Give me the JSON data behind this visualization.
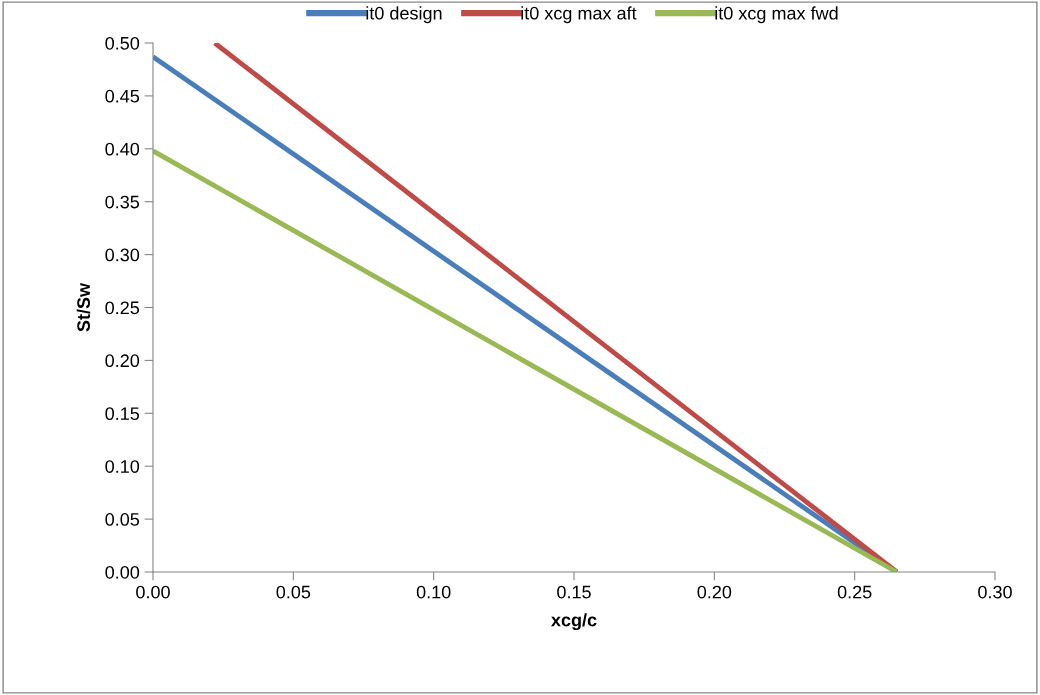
{
  "chart_data": {
    "type": "line",
    "xlabel": "xcg/c",
    "ylabel": "St/Sw",
    "xlim": [
      0,
      0.3
    ],
    "xticks": [
      {
        "value": 0,
        "label": "0.00"
      },
      {
        "value": 0.05,
        "label": "0.05"
      },
      {
        "value": 0.1,
        "label": "0.10"
      },
      {
        "value": 0.15,
        "label": "0.15"
      },
      {
        "value": 0.2,
        "label": "0.20"
      },
      {
        "value": 0.25,
        "label": "0.25"
      },
      {
        "value": 0.3,
        "label": "0.30"
      }
    ],
    "ylim": [
      0,
      0.5
    ],
    "yticks": [
      {
        "value": 0,
        "label": "0.00"
      },
      {
        "value": 0.05,
        "label": "0.05"
      },
      {
        "value": 0.1,
        "label": "0.10"
      },
      {
        "value": 0.15,
        "label": "0.15"
      },
      {
        "value": 0.2,
        "label": "0.20"
      },
      {
        "value": 0.25,
        "label": "0.25"
      },
      {
        "value": 0.3,
        "label": "0.30"
      },
      {
        "value": 0.35,
        "label": "0.35"
      },
      {
        "value": 0.4,
        "label": "0.40"
      },
      {
        "value": 0.45,
        "label": "0.45"
      },
      {
        "value": 0.5,
        "label": "0.50"
      }
    ],
    "grid": false,
    "legend": "top",
    "marker": "none",
    "line_style": "solid",
    "series": [
      {
        "name": "it0 design",
        "color": "#4a7ebb",
        "x": [
          0,
          0.265
        ],
        "values": [
          0.487,
          0
        ]
      },
      {
        "name": "it0 xcg max aft",
        "color": "#be4b48",
        "x": [
          0.022,
          0.265
        ],
        "values": [
          0.5,
          0
        ]
      },
      {
        "name": "it0 xcg max fwd",
        "color": "#98b954",
        "x": [
          0,
          0.265
        ],
        "values": [
          0.398,
          0
        ]
      }
    ]
  }
}
